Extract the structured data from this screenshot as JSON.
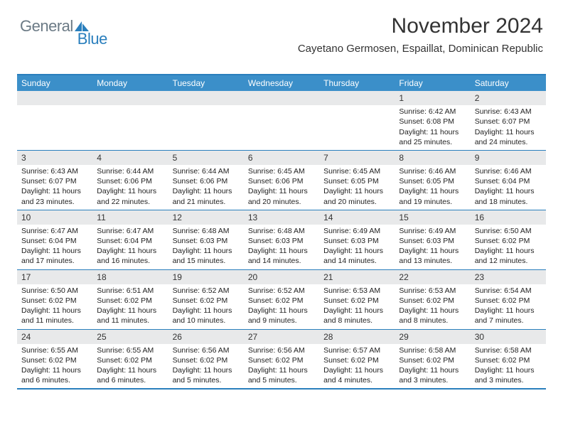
{
  "logo": {
    "text1": "General",
    "text2": "Blue"
  },
  "title": "November 2024",
  "location": "Cayetano Germosen, Espaillat, Dominican Republic",
  "colors": {
    "header_bg": "#3b8fc9",
    "border": "#2a7fbd",
    "daynum_bg": "#e8e9ea",
    "text": "#333333",
    "logo_gray": "#6b7a85",
    "logo_blue": "#2a7fbd",
    "background": "#ffffff"
  },
  "days_of_week": [
    "Sunday",
    "Monday",
    "Tuesday",
    "Wednesday",
    "Thursday",
    "Friday",
    "Saturday"
  ],
  "weeks": [
    [
      {
        "n": "",
        "empty": true
      },
      {
        "n": "",
        "empty": true
      },
      {
        "n": "",
        "empty": true
      },
      {
        "n": "",
        "empty": true
      },
      {
        "n": "",
        "empty": true
      },
      {
        "n": "1",
        "sunrise": "Sunrise: 6:42 AM",
        "sunset": "Sunset: 6:08 PM",
        "daylight": "Daylight: 11 hours and 25 minutes."
      },
      {
        "n": "2",
        "sunrise": "Sunrise: 6:43 AM",
        "sunset": "Sunset: 6:07 PM",
        "daylight": "Daylight: 11 hours and 24 minutes."
      }
    ],
    [
      {
        "n": "3",
        "sunrise": "Sunrise: 6:43 AM",
        "sunset": "Sunset: 6:07 PM",
        "daylight": "Daylight: 11 hours and 23 minutes."
      },
      {
        "n": "4",
        "sunrise": "Sunrise: 6:44 AM",
        "sunset": "Sunset: 6:06 PM",
        "daylight": "Daylight: 11 hours and 22 minutes."
      },
      {
        "n": "5",
        "sunrise": "Sunrise: 6:44 AM",
        "sunset": "Sunset: 6:06 PM",
        "daylight": "Daylight: 11 hours and 21 minutes."
      },
      {
        "n": "6",
        "sunrise": "Sunrise: 6:45 AM",
        "sunset": "Sunset: 6:06 PM",
        "daylight": "Daylight: 11 hours and 20 minutes."
      },
      {
        "n": "7",
        "sunrise": "Sunrise: 6:45 AM",
        "sunset": "Sunset: 6:05 PM",
        "daylight": "Daylight: 11 hours and 20 minutes."
      },
      {
        "n": "8",
        "sunrise": "Sunrise: 6:46 AM",
        "sunset": "Sunset: 6:05 PM",
        "daylight": "Daylight: 11 hours and 19 minutes."
      },
      {
        "n": "9",
        "sunrise": "Sunrise: 6:46 AM",
        "sunset": "Sunset: 6:04 PM",
        "daylight": "Daylight: 11 hours and 18 minutes."
      }
    ],
    [
      {
        "n": "10",
        "sunrise": "Sunrise: 6:47 AM",
        "sunset": "Sunset: 6:04 PM",
        "daylight": "Daylight: 11 hours and 17 minutes."
      },
      {
        "n": "11",
        "sunrise": "Sunrise: 6:47 AM",
        "sunset": "Sunset: 6:04 PM",
        "daylight": "Daylight: 11 hours and 16 minutes."
      },
      {
        "n": "12",
        "sunrise": "Sunrise: 6:48 AM",
        "sunset": "Sunset: 6:03 PM",
        "daylight": "Daylight: 11 hours and 15 minutes."
      },
      {
        "n": "13",
        "sunrise": "Sunrise: 6:48 AM",
        "sunset": "Sunset: 6:03 PM",
        "daylight": "Daylight: 11 hours and 14 minutes."
      },
      {
        "n": "14",
        "sunrise": "Sunrise: 6:49 AM",
        "sunset": "Sunset: 6:03 PM",
        "daylight": "Daylight: 11 hours and 14 minutes."
      },
      {
        "n": "15",
        "sunrise": "Sunrise: 6:49 AM",
        "sunset": "Sunset: 6:03 PM",
        "daylight": "Daylight: 11 hours and 13 minutes."
      },
      {
        "n": "16",
        "sunrise": "Sunrise: 6:50 AM",
        "sunset": "Sunset: 6:02 PM",
        "daylight": "Daylight: 11 hours and 12 minutes."
      }
    ],
    [
      {
        "n": "17",
        "sunrise": "Sunrise: 6:50 AM",
        "sunset": "Sunset: 6:02 PM",
        "daylight": "Daylight: 11 hours and 11 minutes."
      },
      {
        "n": "18",
        "sunrise": "Sunrise: 6:51 AM",
        "sunset": "Sunset: 6:02 PM",
        "daylight": "Daylight: 11 hours and 11 minutes."
      },
      {
        "n": "19",
        "sunrise": "Sunrise: 6:52 AM",
        "sunset": "Sunset: 6:02 PM",
        "daylight": "Daylight: 11 hours and 10 minutes."
      },
      {
        "n": "20",
        "sunrise": "Sunrise: 6:52 AM",
        "sunset": "Sunset: 6:02 PM",
        "daylight": "Daylight: 11 hours and 9 minutes."
      },
      {
        "n": "21",
        "sunrise": "Sunrise: 6:53 AM",
        "sunset": "Sunset: 6:02 PM",
        "daylight": "Daylight: 11 hours and 8 minutes."
      },
      {
        "n": "22",
        "sunrise": "Sunrise: 6:53 AM",
        "sunset": "Sunset: 6:02 PM",
        "daylight": "Daylight: 11 hours and 8 minutes."
      },
      {
        "n": "23",
        "sunrise": "Sunrise: 6:54 AM",
        "sunset": "Sunset: 6:02 PM",
        "daylight": "Daylight: 11 hours and 7 minutes."
      }
    ],
    [
      {
        "n": "24",
        "sunrise": "Sunrise: 6:55 AM",
        "sunset": "Sunset: 6:02 PM",
        "daylight": "Daylight: 11 hours and 6 minutes."
      },
      {
        "n": "25",
        "sunrise": "Sunrise: 6:55 AM",
        "sunset": "Sunset: 6:02 PM",
        "daylight": "Daylight: 11 hours and 6 minutes."
      },
      {
        "n": "26",
        "sunrise": "Sunrise: 6:56 AM",
        "sunset": "Sunset: 6:02 PM",
        "daylight": "Daylight: 11 hours and 5 minutes."
      },
      {
        "n": "27",
        "sunrise": "Sunrise: 6:56 AM",
        "sunset": "Sunset: 6:02 PM",
        "daylight": "Daylight: 11 hours and 5 minutes."
      },
      {
        "n": "28",
        "sunrise": "Sunrise: 6:57 AM",
        "sunset": "Sunset: 6:02 PM",
        "daylight": "Daylight: 11 hours and 4 minutes."
      },
      {
        "n": "29",
        "sunrise": "Sunrise: 6:58 AM",
        "sunset": "Sunset: 6:02 PM",
        "daylight": "Daylight: 11 hours and 3 minutes."
      },
      {
        "n": "30",
        "sunrise": "Sunrise: 6:58 AM",
        "sunset": "Sunset: 6:02 PM",
        "daylight": "Daylight: 11 hours and 3 minutes."
      }
    ]
  ]
}
